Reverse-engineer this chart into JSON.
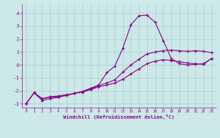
{
  "title": "",
  "xlabel": "Windchill (Refroidissement éolien,°C)",
  "ylabel": "",
  "xlim": [
    -0.5,
    23.5
  ],
  "ylim": [
    -3.3,
    4.7
  ],
  "xticks": [
    0,
    1,
    2,
    3,
    4,
    5,
    6,
    7,
    8,
    9,
    10,
    11,
    12,
    13,
    14,
    15,
    16,
    17,
    18,
    19,
    20,
    21,
    22,
    23
  ],
  "yticks": [
    -3,
    -2,
    -1,
    0,
    1,
    2,
    3,
    4
  ],
  "background_color": "#cce8e8",
  "line_color": "#8B008B",
  "grid_color": "#aacccc",
  "line1_x": [
    0,
    1,
    2,
    3,
    4,
    5,
    6,
    7,
    8,
    9,
    10,
    11,
    12,
    13,
    14,
    15,
    16,
    17,
    18,
    19,
    20,
    21,
    22,
    23
  ],
  "line1_y": [
    -3.0,
    -2.15,
    -2.75,
    -2.6,
    -2.5,
    -2.35,
    -2.2,
    -2.05,
    -1.8,
    -1.55,
    -0.6,
    -0.1,
    1.3,
    3.1,
    3.8,
    3.85,
    3.3,
    1.9,
    0.5,
    0.1,
    0.0,
    0.05,
    0.1,
    0.5
  ],
  "line2_x": [
    0,
    1,
    2,
    3,
    4,
    5,
    6,
    7,
    8,
    9,
    10,
    11,
    12,
    13,
    14,
    15,
    16,
    17,
    18,
    19,
    20,
    21,
    22,
    23
  ],
  "line2_y": [
    -3.0,
    -2.15,
    -2.6,
    -2.45,
    -2.4,
    -2.3,
    -2.2,
    -2.05,
    -1.85,
    -1.6,
    -1.4,
    -1.15,
    -0.55,
    0.0,
    0.45,
    0.85,
    1.0,
    1.1,
    1.15,
    1.1,
    1.05,
    1.1,
    1.05,
    0.95
  ],
  "line3_x": [
    0,
    1,
    2,
    3,
    4,
    5,
    6,
    7,
    8,
    9,
    10,
    11,
    12,
    13,
    14,
    15,
    16,
    17,
    18,
    19,
    20,
    21,
    22,
    23
  ],
  "line3_y": [
    -3.0,
    -2.15,
    -2.6,
    -2.5,
    -2.45,
    -2.35,
    -2.2,
    -2.1,
    -1.9,
    -1.7,
    -1.55,
    -1.4,
    -1.1,
    -0.7,
    -0.3,
    0.1,
    0.3,
    0.4,
    0.35,
    0.25,
    0.15,
    0.1,
    0.05,
    0.5
  ]
}
